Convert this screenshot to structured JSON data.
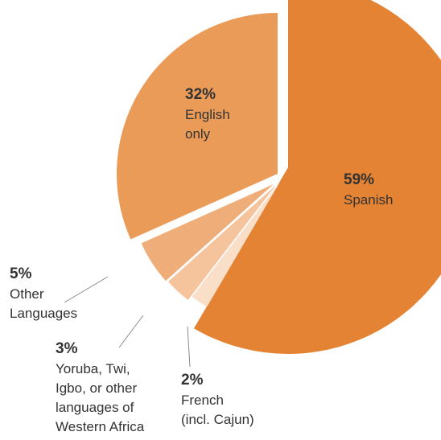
{
  "chart_data": {
    "type": "pie",
    "title": "",
    "slices": [
      {
        "label_lines": [
          "Spanish"
        ],
        "value": 59,
        "value_label": "59%",
        "color": "#e48333"
      },
      {
        "label_lines": [
          "French",
          "(incl. Cajun)"
        ],
        "value": 2,
        "value_label": "2%",
        "color": "#f9dfc8"
      },
      {
        "label_lines": [
          "Yoruba, Twi,",
          "Igbo, or other",
          "languages of",
          "Western Africa"
        ],
        "value": 3,
        "value_label": "3%",
        "color": "#f5c49c"
      },
      {
        "label_lines": [
          "Other",
          "Languages"
        ],
        "value": 5,
        "value_label": "5%",
        "color": "#efae79"
      },
      {
        "label_lines": [
          "English",
          "only"
        ],
        "value": 32,
        "value_label": "32%",
        "color": "#eb9b58"
      }
    ],
    "start_angle_deg": 0,
    "direction": "clockwise",
    "exploded": true,
    "legend": "none"
  }
}
